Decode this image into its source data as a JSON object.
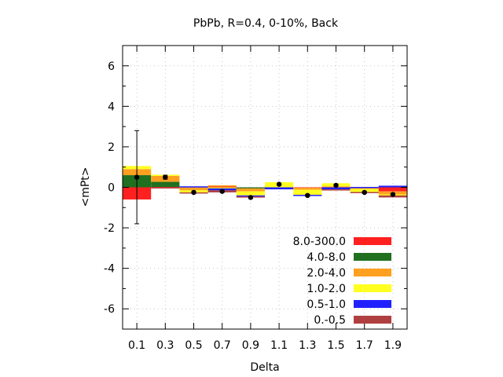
{
  "chart_data": {
    "type": "bar",
    "title": "PbPb, R=0.4, 0-10%, Back",
    "xlabel": "Delta",
    "ylabel": "<mPt>",
    "xlim": [
      0,
      2
    ],
    "ylim": [
      -7,
      7
    ],
    "yticks": [
      -6,
      -4,
      -2,
      0,
      2,
      4,
      6
    ],
    "categories": [
      "0.1",
      "0.3",
      "0.5",
      "0.7",
      "0.9",
      "1.1",
      "1.3",
      "1.5",
      "1.7",
      "1.9"
    ],
    "grid": true,
    "legend_position": "bottom-right",
    "stacked": true,
    "series": [
      {
        "name": "8.0-300.0",
        "color": "#ff2020",
        "values": [
          -0.6,
          0.02,
          0.0,
          0.05,
          0.0,
          0.0,
          -0.02,
          0.0,
          0.0,
          -0.2
        ]
      },
      {
        "name": "4.0-8.0",
        "color": "#207020",
        "values": [
          0.6,
          0.25,
          0.0,
          0.0,
          -0.05,
          0.0,
          0.0,
          0.0,
          0.0,
          0.0
        ]
      },
      {
        "name": "2.0-4.0",
        "color": "#ffa020",
        "values": [
          0.3,
          0.3,
          -0.15,
          0.05,
          -0.15,
          0.0,
          -0.1,
          0.05,
          -0.08,
          -0.15
        ]
      },
      {
        "name": "1.0-2.0",
        "color": "#ffff20",
        "values": [
          0.15,
          0.05,
          -0.1,
          -0.05,
          -0.2,
          0.25,
          -0.25,
          0.15,
          -0.15,
          -0.05
        ]
      },
      {
        "name": "0.5-1.0",
        "color": "#2020ff",
        "values": [
          0.0,
          0.0,
          0.05,
          -0.1,
          -0.05,
          -0.1,
          -0.05,
          -0.1,
          0.02,
          0.08
        ]
      },
      {
        "name": "0.-0.5",
        "color": "#b04040",
        "values": [
          0.0,
          -0.05,
          -0.05,
          -0.1,
          -0.05,
          0.0,
          0.0,
          -0.05,
          -0.02,
          -0.1
        ]
      }
    ],
    "points": {
      "x": [
        0.1,
        0.3,
        0.5,
        0.7,
        0.9,
        1.1,
        1.3,
        1.5,
        1.7,
        1.9
      ],
      "y": [
        0.5,
        0.5,
        -0.25,
        -0.2,
        -0.5,
        0.15,
        -0.4,
        0.1,
        -0.25,
        -0.35
      ],
      "err": [
        2.3,
        0.1,
        0.05,
        0.05,
        0.05,
        0.05,
        0.05,
        0.05,
        0.05,
        0.05
      ]
    }
  }
}
